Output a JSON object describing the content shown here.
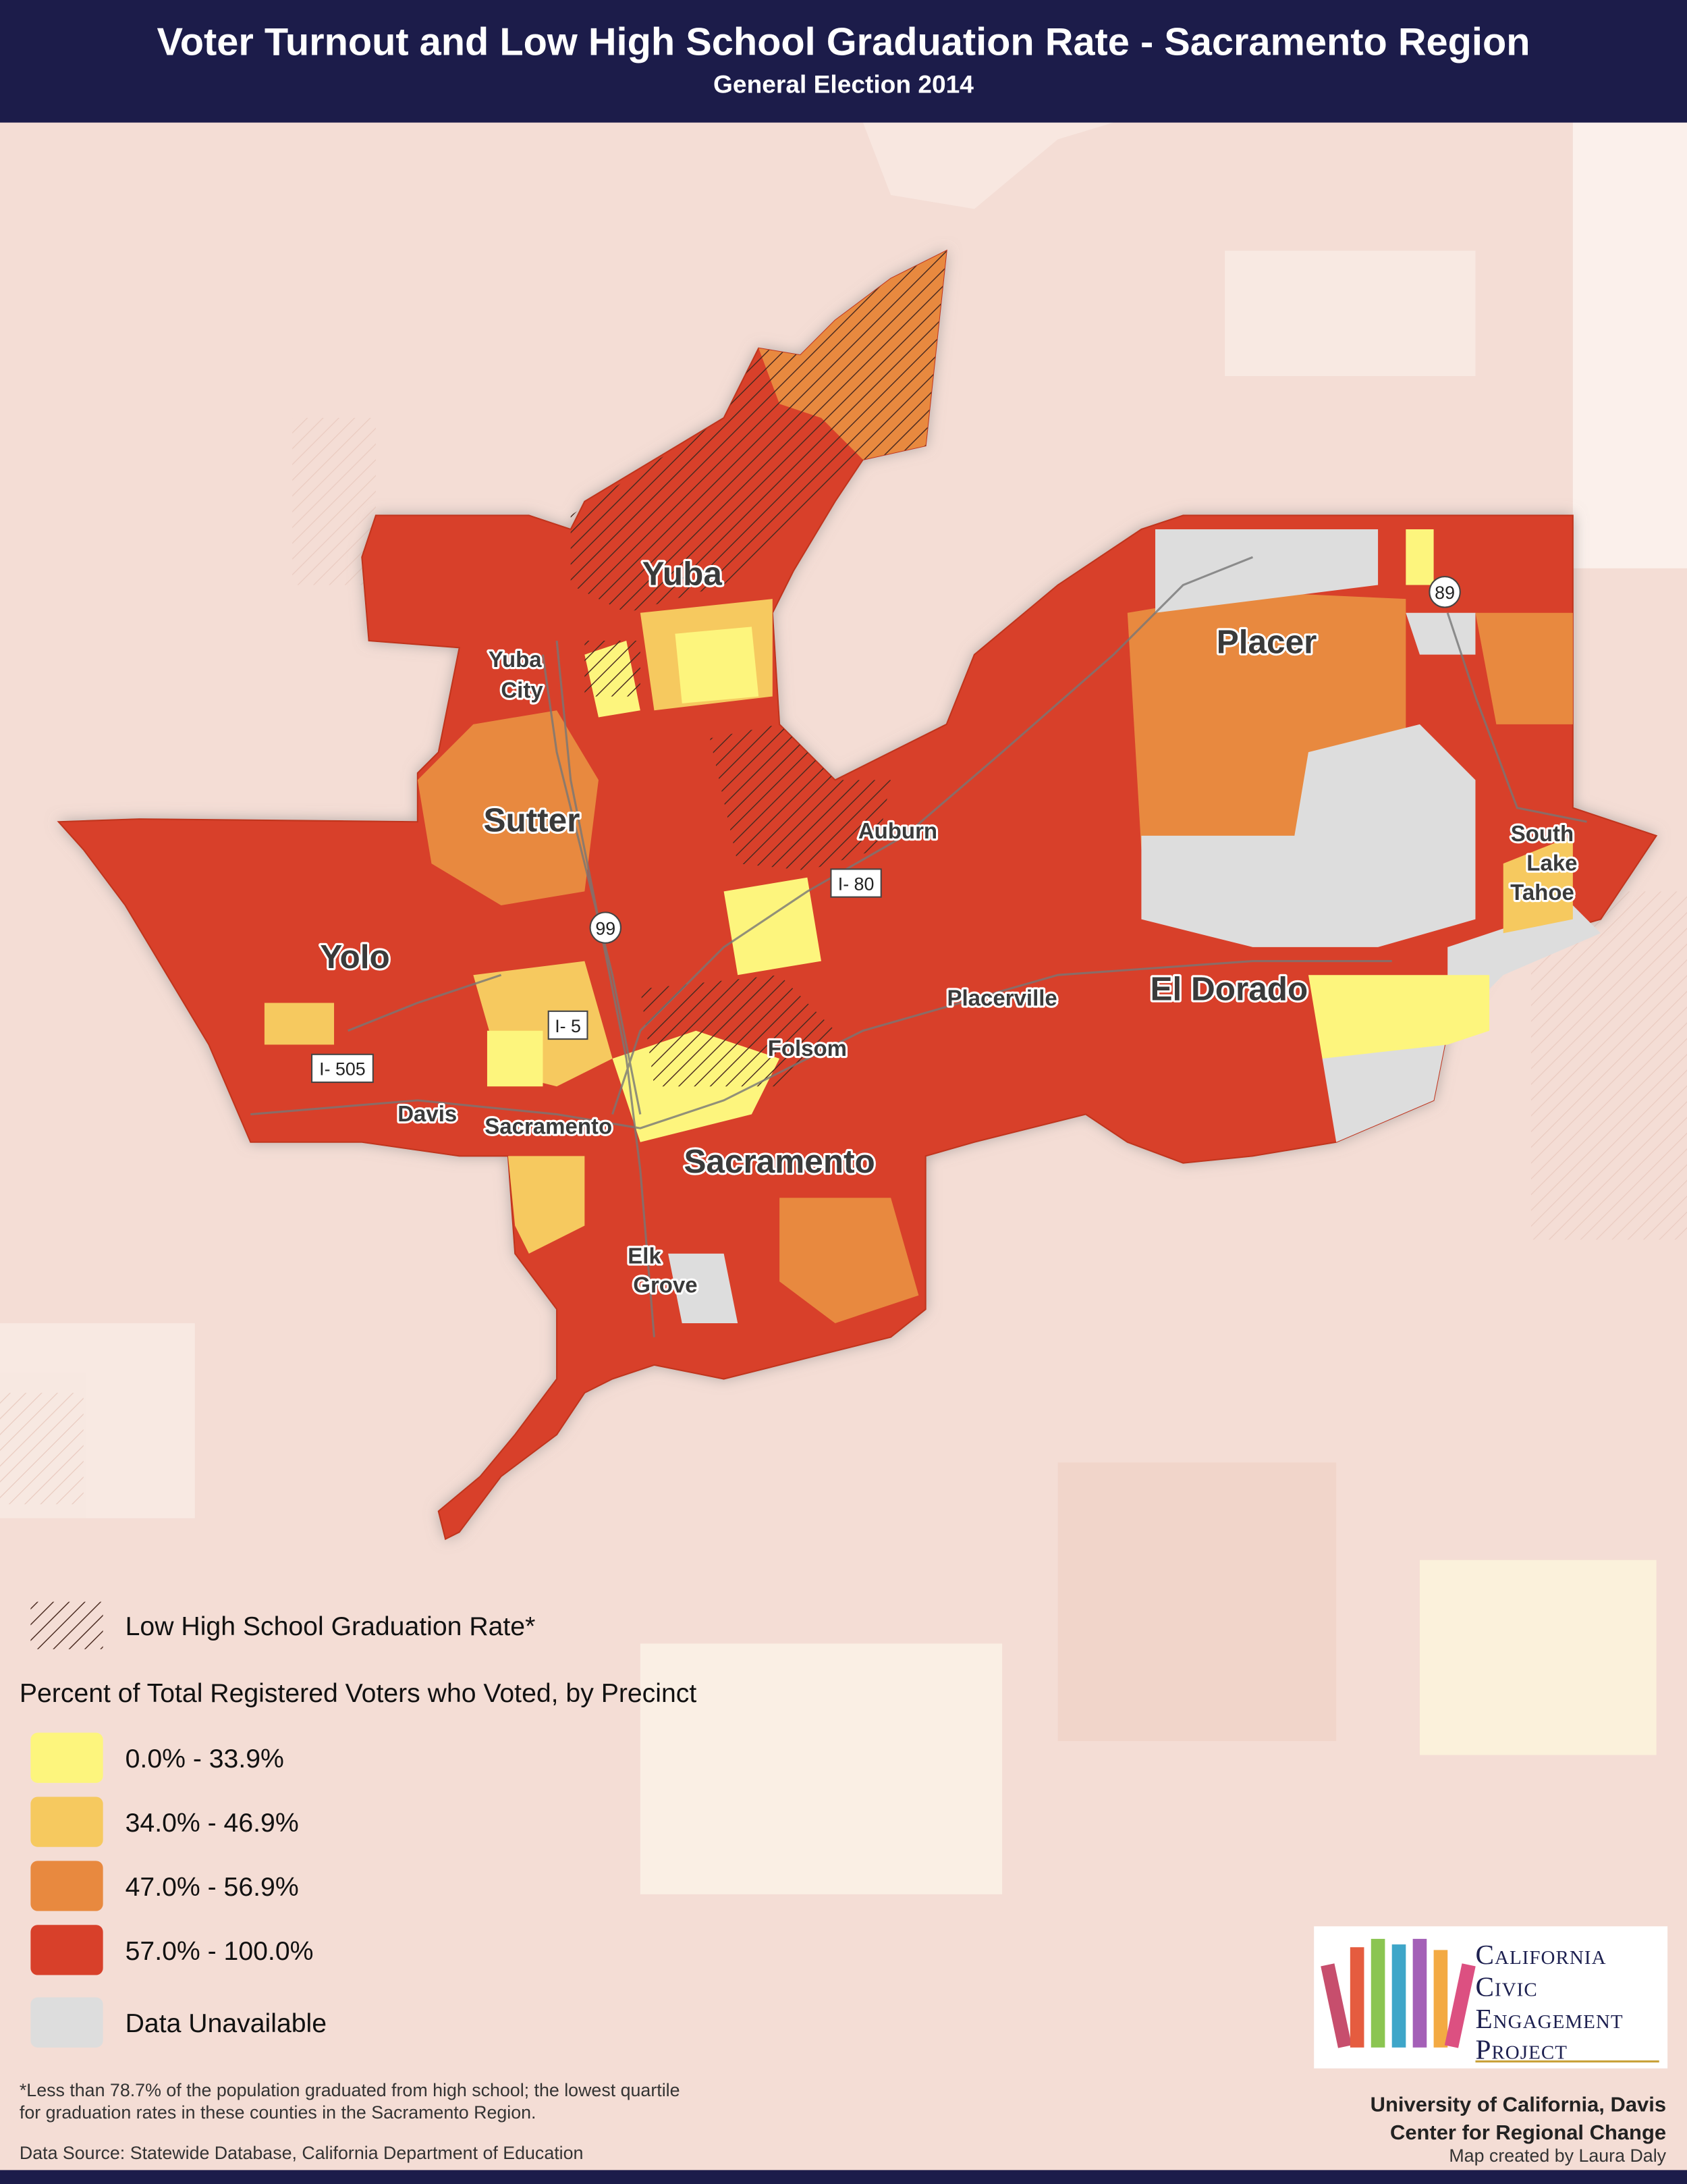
{
  "header": {
    "title": "Voter Turnout and Low High School Graduation Rate - Sacramento Region",
    "subtitle": "General Election 2014"
  },
  "map": {
    "places": {
      "yuba": "Yuba",
      "yuba_city": [
        "Yuba",
        "City"
      ],
      "sutter": "Sutter",
      "auburn": "Auburn",
      "placer": "Placer",
      "south_lake_tahoe": [
        "South",
        "Lake",
        "Tahoe"
      ],
      "yolo": "Yolo",
      "placerville": "Placerville",
      "el_dorado": "El Dorado",
      "folsom": "Folsom",
      "davis": "Davis",
      "sacramento_city": "Sacramento",
      "sacramento_county": "Sacramento",
      "elk_grove": [
        "Elk",
        "Grove"
      ]
    },
    "highways": {
      "i80": "I- 80",
      "sr99": "99",
      "i5": "I- 5",
      "i505": "I- 505",
      "sr89": "89"
    }
  },
  "legend": {
    "hatch_label": "Low High School Graduation Rate*",
    "title": "Percent of Total Registered Voters who Voted, by Precinct",
    "items": [
      {
        "label": "0.0% - 33.9%",
        "color": "#fdf57d"
      },
      {
        "label": "34.0% - 46.9%",
        "color": "#f6c95f"
      },
      {
        "label": "47.0% - 56.9%",
        "color": "#e8893f"
      },
      {
        "label": "57.0% - 100.0%",
        "color": "#d8402a"
      },
      {
        "label": "Data Unavailable",
        "color": "#dddddd"
      }
    ]
  },
  "footnote": [
    "*Less than 78.7% of the population graduated from high school; the lowest quartile",
    "for graduation rates in these counties in the Sacramento Region."
  ],
  "source": "Data Source: Statewide Database, California Department of Education",
  "logo": [
    "California",
    "Civic",
    "Engagement",
    "Project"
  ],
  "credits": [
    "University of California, Davis",
    "Center for Regional Change",
    "Map created by Laura Daly"
  ]
}
